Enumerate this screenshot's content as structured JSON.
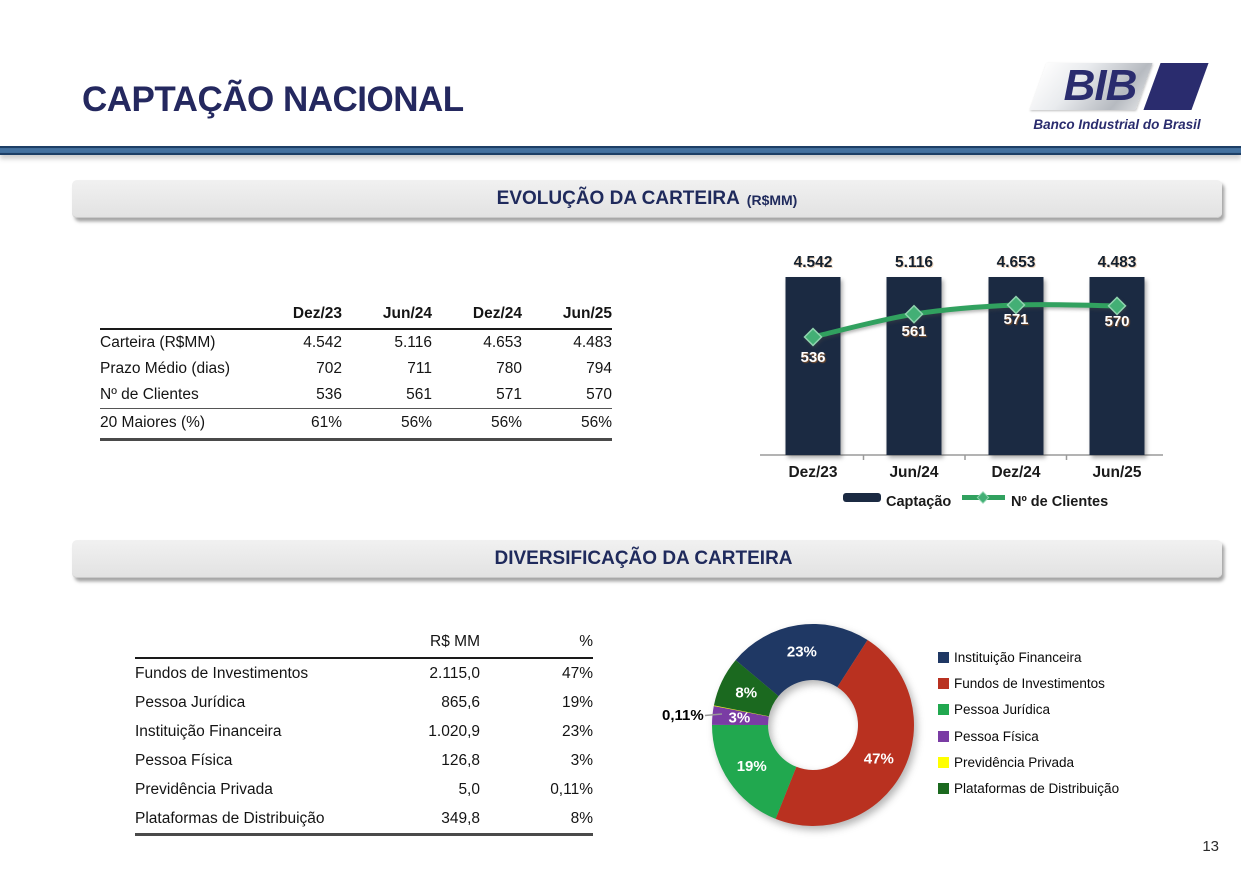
{
  "page": {
    "title": "CAPTAÇÃO NACIONAL",
    "page_number": "13"
  },
  "logo": {
    "text": "BIB",
    "subtitle": "Banco Industrial do Brasil",
    "brand_color": "#2A2C6E"
  },
  "sections": [
    {
      "title": "EVOLUÇÃO DA CARTEIRA",
      "suffix": "(R$MM)"
    },
    {
      "title": "DIVERSIFICAÇÃO DA CARTEIRA",
      "suffix": ""
    }
  ],
  "evolution_table": {
    "columns": [
      "",
      "Dez/23",
      "Jun/24",
      "Dez/24",
      "Jun/25"
    ],
    "rows": [
      {
        "label": "Carteira (R$MM)",
        "values": [
          "4.542",
          "5.116",
          "4.653",
          "4.483"
        ]
      },
      {
        "label": "Prazo Médio (dias)",
        "values": [
          "702",
          "711",
          "780",
          "794"
        ]
      },
      {
        "label": "Nº de Clientes",
        "values": [
          "536",
          "561",
          "571",
          "570"
        ]
      },
      {
        "label": "20 Maiores (%)",
        "values": [
          "61%",
          "56%",
          "56%",
          "56%"
        ]
      }
    ]
  },
  "diversification_table": {
    "columns": [
      "",
      "R$ MM",
      "%"
    ],
    "rows": [
      {
        "label": "Fundos de Investimentos",
        "value": "2.115,0",
        "pct": "47%"
      },
      {
        "label": "Pessoa Jurídica",
        "value": "865,6",
        "pct": "19%"
      },
      {
        "label": "Instituição Financeira",
        "value": "1.020,9",
        "pct": "23%"
      },
      {
        "label": "Pessoa Física",
        "value": "126,8",
        "pct": "3%"
      },
      {
        "label": "Previdência Privada",
        "value": "5,0",
        "pct": "0,11%"
      },
      {
        "label": "Plataformas de Distribuição",
        "value": "349,8",
        "pct": "8%"
      }
    ]
  },
  "chart_data": [
    {
      "type": "bar",
      "title": "EVOLUÇÃO DA CARTEIRA (R$MM)",
      "categories": [
        "Dez/23",
        "Jun/24",
        "Dez/24",
        "Jun/25"
      ],
      "series": [
        {
          "name": "Captação",
          "type": "bar",
          "values": [
            4542,
            5116,
            4653,
            4483
          ],
          "labels": [
            "4.542",
            "5.116",
            "4.653",
            "4.483"
          ],
          "color": "#1B2A42"
        },
        {
          "name": "Nº de Clientes",
          "type": "line",
          "values": [
            536,
            561,
            571,
            570
          ],
          "labels": [
            "536",
            "561",
            "571",
            "570"
          ],
          "color": "#31A15F",
          "marker_color": "#43AF75"
        }
      ],
      "legend_position": "bottom",
      "grid": false
    },
    {
      "type": "pie",
      "donut": true,
      "title": "DIVERSIFICAÇÃO DA CARTEIRA",
      "labels": [
        "Instituição Financeira",
        "Fundos de Investimentos",
        "Pessoa Jurídica",
        "Pessoa Física",
        "Previdência Privada",
        "Plataformas de Distribuição"
      ],
      "values": [
        23,
        47,
        19,
        3,
        0.11,
        8
      ],
      "slice_labels": [
        "23%",
        "47%",
        "19%",
        "3%",
        "0,11%",
        "8%"
      ],
      "colors": [
        "#1F3864",
        "#B93120",
        "#21A84F",
        "#7A3CA4",
        "#FFFF00",
        "#1B691F"
      ],
      "start_angle_deg": -50,
      "callout_label": "0,11%",
      "legend_position": "right"
    }
  ]
}
